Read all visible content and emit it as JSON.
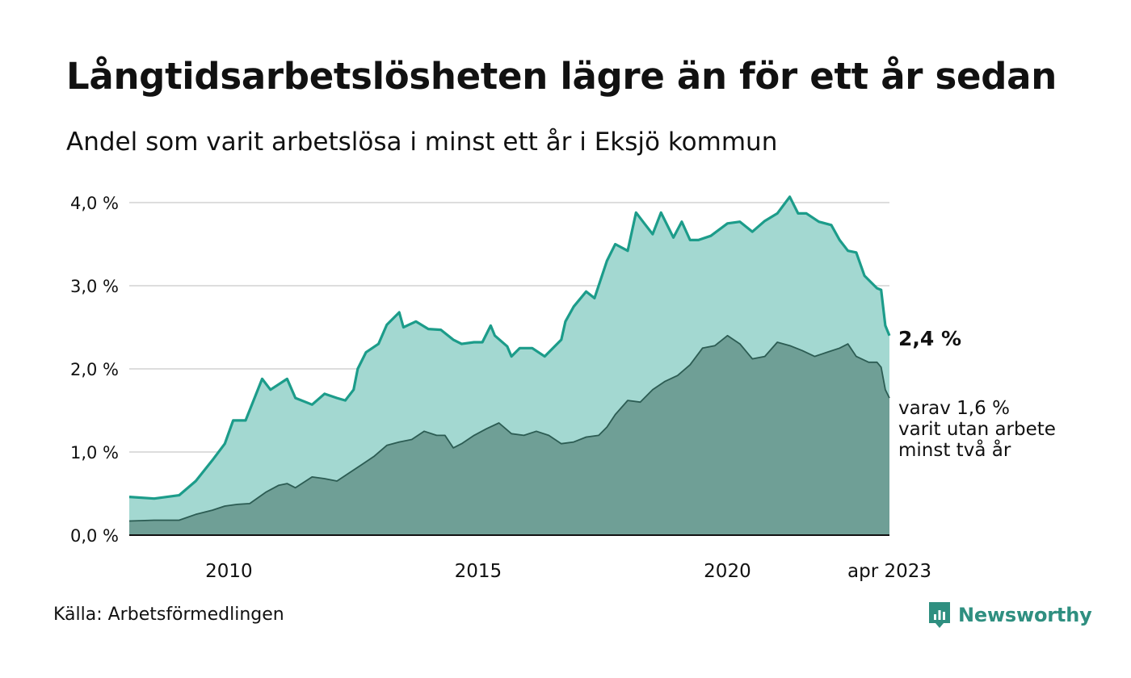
{
  "title": "Långtidsarbetslösheten lägre än för ett år sedan",
  "subtitle": "Andel som varit arbetslösa i minst ett år i Eksjö kommun",
  "source": "Källa: Arbetsförmedlingen",
  "brand": "Newsworthy",
  "colors": {
    "total_area": "#a3d8d1",
    "total_line": "#1c9c8a",
    "sub_area": "#6f9f96",
    "sub_line": "#2c5c53",
    "grid": "#dddddd",
    "axis": "#111111",
    "brand": "#2f8f80"
  },
  "chart_data": {
    "type": "area",
    "x_range": [
      "2008-01",
      "2023-04"
    ],
    "ylim": [
      0,
      4
    ],
    "grid": true,
    "y_ticks": [
      {
        "value": 0,
        "label": "0,0 %"
      },
      {
        "value": 1,
        "label": "1,0 %"
      },
      {
        "value": 2,
        "label": "2,0 %"
      },
      {
        "value": 3,
        "label": "3,0 %"
      },
      {
        "value": 4,
        "label": "4,0 %"
      }
    ],
    "x_ticks": [
      {
        "date": "2010-01",
        "label": "2010"
      },
      {
        "date": "2015-01",
        "label": "2015"
      },
      {
        "date": "2020-01",
        "label": "2020"
      },
      {
        "date": "2023-04",
        "label": "apr 2023"
      }
    ],
    "annotations": {
      "total_end": "2,4 %",
      "sub_end": [
        "varav 1,6 %",
        "varit utan arbete",
        "minst två år"
      ]
    },
    "series": [
      {
        "key": "total",
        "points": [
          [
            "2008-01",
            0.46
          ],
          [
            "2008-07",
            0.44
          ],
          [
            "2009-01",
            0.48
          ],
          [
            "2009-05",
            0.65
          ],
          [
            "2009-09",
            0.9
          ],
          [
            "2009-12",
            1.1
          ],
          [
            "2010-02",
            1.38
          ],
          [
            "2010-05",
            1.38
          ],
          [
            "2010-09",
            1.88
          ],
          [
            "2010-11",
            1.75
          ],
          [
            "2011-03",
            1.88
          ],
          [
            "2011-05",
            1.65
          ],
          [
            "2011-09",
            1.57
          ],
          [
            "2011-12",
            1.7
          ],
          [
            "2012-03",
            1.65
          ],
          [
            "2012-05",
            1.62
          ],
          [
            "2012-07",
            1.75
          ],
          [
            "2012-08",
            2.0
          ],
          [
            "2012-10",
            2.2
          ],
          [
            "2013-01",
            2.3
          ],
          [
            "2013-03",
            2.53
          ],
          [
            "2013-06",
            2.68
          ],
          [
            "2013-07",
            2.5
          ],
          [
            "2013-10",
            2.57
          ],
          [
            "2014-01",
            2.48
          ],
          [
            "2014-04",
            2.47
          ],
          [
            "2014-07",
            2.35
          ],
          [
            "2014-09",
            2.3
          ],
          [
            "2014-12",
            2.32
          ],
          [
            "2015-02",
            2.32
          ],
          [
            "2015-04",
            2.52
          ],
          [
            "2015-05",
            2.4
          ],
          [
            "2015-08",
            2.27
          ],
          [
            "2015-09",
            2.15
          ],
          [
            "2015-11",
            2.25
          ],
          [
            "2016-02",
            2.25
          ],
          [
            "2016-05",
            2.15
          ],
          [
            "2016-07",
            2.25
          ],
          [
            "2016-09",
            2.35
          ],
          [
            "2016-10",
            2.57
          ],
          [
            "2016-12",
            2.75
          ],
          [
            "2017-03",
            2.93
          ],
          [
            "2017-05",
            2.85
          ],
          [
            "2017-08",
            3.3
          ],
          [
            "2017-10",
            3.5
          ],
          [
            "2018-01",
            3.42
          ],
          [
            "2018-03",
            3.88
          ],
          [
            "2018-05",
            3.75
          ],
          [
            "2018-07",
            3.62
          ],
          [
            "2018-09",
            3.88
          ],
          [
            "2018-12",
            3.58
          ],
          [
            "2019-02",
            3.77
          ],
          [
            "2019-04",
            3.55
          ],
          [
            "2019-06",
            3.55
          ],
          [
            "2019-09",
            3.6
          ],
          [
            "2020-01",
            3.75
          ],
          [
            "2020-04",
            3.77
          ],
          [
            "2020-07",
            3.65
          ],
          [
            "2020-10",
            3.78
          ],
          [
            "2021-01",
            3.87
          ],
          [
            "2021-04",
            4.07
          ],
          [
            "2021-06",
            3.87
          ],
          [
            "2021-08",
            3.87
          ],
          [
            "2021-11",
            3.77
          ],
          [
            "2022-02",
            3.73
          ],
          [
            "2022-04",
            3.55
          ],
          [
            "2022-06",
            3.42
          ],
          [
            "2022-08",
            3.4
          ],
          [
            "2022-10",
            3.12
          ],
          [
            "2023-01",
            2.97
          ],
          [
            "2023-02",
            2.95
          ],
          [
            "2023-03",
            2.52
          ],
          [
            "2023-04",
            2.4
          ]
        ]
      },
      {
        "key": "sub",
        "points": [
          [
            "2008-01",
            0.17
          ],
          [
            "2008-07",
            0.18
          ],
          [
            "2009-01",
            0.18
          ],
          [
            "2009-05",
            0.25
          ],
          [
            "2009-09",
            0.3
          ],
          [
            "2009-12",
            0.35
          ],
          [
            "2010-03",
            0.37
          ],
          [
            "2010-06",
            0.38
          ],
          [
            "2010-08",
            0.45
          ],
          [
            "2010-10",
            0.52
          ],
          [
            "2011-01",
            0.6
          ],
          [
            "2011-03",
            0.62
          ],
          [
            "2011-05",
            0.57
          ],
          [
            "2011-09",
            0.7
          ],
          [
            "2011-12",
            0.68
          ],
          [
            "2012-03",
            0.65
          ],
          [
            "2012-06",
            0.75
          ],
          [
            "2012-09",
            0.85
          ],
          [
            "2012-12",
            0.95
          ],
          [
            "2013-03",
            1.08
          ],
          [
            "2013-06",
            1.12
          ],
          [
            "2013-09",
            1.15
          ],
          [
            "2013-12",
            1.25
          ],
          [
            "2014-03",
            1.2
          ],
          [
            "2014-05",
            1.2
          ],
          [
            "2014-07",
            1.05
          ],
          [
            "2014-09",
            1.1
          ],
          [
            "2014-12",
            1.2
          ],
          [
            "2015-03",
            1.28
          ],
          [
            "2015-06",
            1.35
          ],
          [
            "2015-09",
            1.22
          ],
          [
            "2015-12",
            1.2
          ],
          [
            "2016-03",
            1.25
          ],
          [
            "2016-06",
            1.2
          ],
          [
            "2016-09",
            1.1
          ],
          [
            "2016-12",
            1.12
          ],
          [
            "2017-03",
            1.18
          ],
          [
            "2017-06",
            1.2
          ],
          [
            "2017-08",
            1.3
          ],
          [
            "2017-10",
            1.45
          ],
          [
            "2018-01",
            1.62
          ],
          [
            "2018-04",
            1.6
          ],
          [
            "2018-07",
            1.75
          ],
          [
            "2018-10",
            1.85
          ],
          [
            "2019-01",
            1.92
          ],
          [
            "2019-04",
            2.05
          ],
          [
            "2019-07",
            2.25
          ],
          [
            "2019-10",
            2.28
          ],
          [
            "2020-01",
            2.4
          ],
          [
            "2020-04",
            2.3
          ],
          [
            "2020-07",
            2.12
          ],
          [
            "2020-10",
            2.15
          ],
          [
            "2021-01",
            2.32
          ],
          [
            "2021-04",
            2.28
          ],
          [
            "2021-07",
            2.22
          ],
          [
            "2021-10",
            2.15
          ],
          [
            "2022-01",
            2.2
          ],
          [
            "2022-04",
            2.25
          ],
          [
            "2022-06",
            2.3
          ],
          [
            "2022-08",
            2.15
          ],
          [
            "2022-11",
            2.08
          ],
          [
            "2023-01",
            2.08
          ],
          [
            "2023-02",
            2.02
          ],
          [
            "2023-03",
            1.75
          ],
          [
            "2023-04",
            1.65
          ]
        ]
      }
    ]
  }
}
